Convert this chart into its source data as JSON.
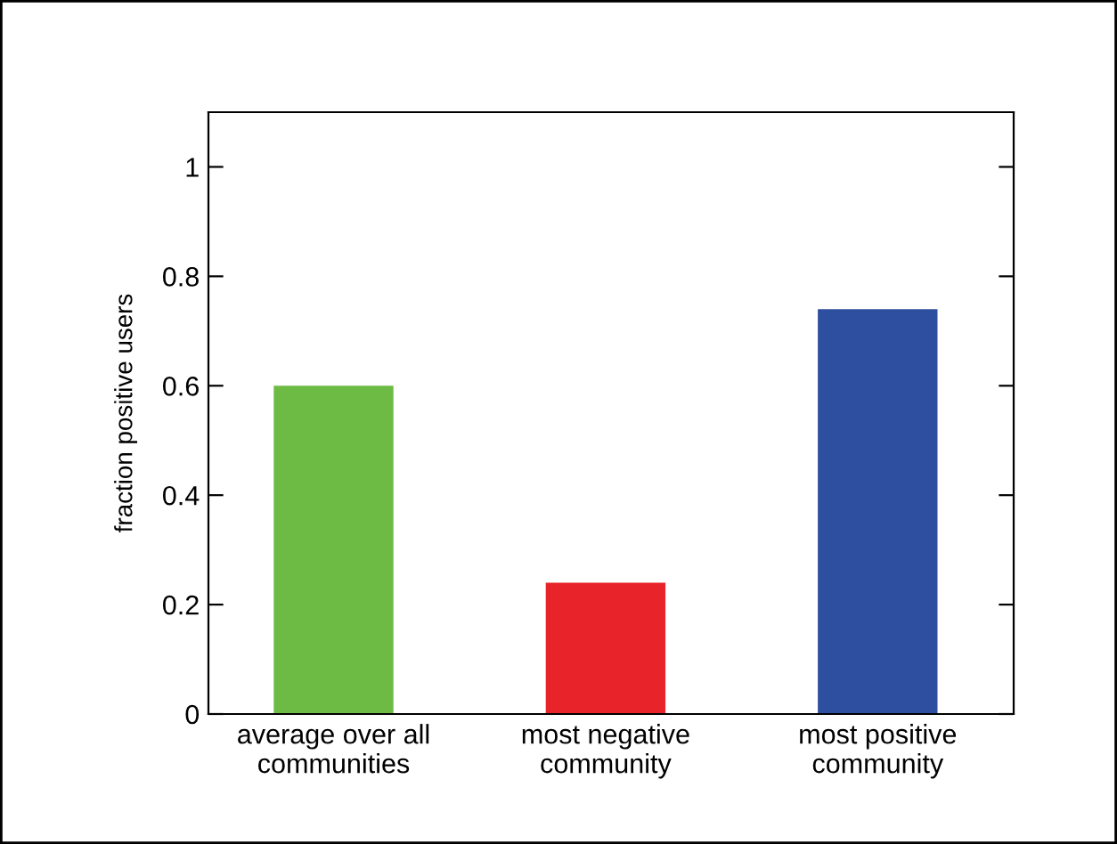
{
  "chart_data": {
    "type": "bar",
    "ylabel": "fraction positive users",
    "categories": [
      "average over all\ncommunities",
      "most negative\ncommunity",
      "most positive\ncommunity"
    ],
    "values": [
      0.6,
      0.24,
      0.74
    ],
    "colors": [
      "#6dbb45",
      "#e8242a",
      "#2e4fa0"
    ],
    "ylim": [
      0,
      1.1
    ],
    "yticks": [
      0,
      0.2,
      0.4,
      0.6,
      0.8,
      1
    ],
    "grid": false
  }
}
